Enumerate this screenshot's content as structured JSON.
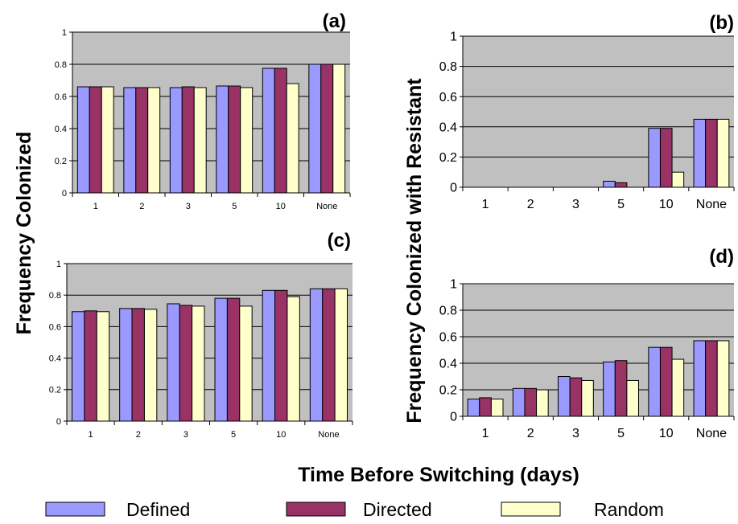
{
  "legend": [
    {
      "name": "Defined",
      "color": "#9999ff"
    },
    {
      "name": "Directed",
      "color": "#993366"
    },
    {
      "name": "Random",
      "color": "#ffffcc"
    }
  ],
  "labels": {
    "left_ylabel": "Frequency Colonized",
    "right_ylabel": "Frequency Colonized with Resistant",
    "xlabel": "Time Before Switching  (days)"
  },
  "colors": {
    "plot_bg": "#c0c0c0",
    "bar_stroke": "#000000"
  },
  "chart_data": [
    {
      "type": "bar",
      "panel": "(a)",
      "categories": [
        "1",
        "2",
        "3",
        "5",
        "10",
        "None"
      ],
      "ylim": [
        0,
        1
      ],
      "yticks": [
        "0",
        "0.2",
        "0.4",
        "0.6",
        "0.8",
        "1"
      ],
      "series": [
        {
          "name": "Defined",
          "values": [
            0.66,
            0.655,
            0.655,
            0.665,
            0.775,
            0.8
          ]
        },
        {
          "name": "Directed",
          "values": [
            0.66,
            0.655,
            0.66,
            0.665,
            0.775,
            0.8
          ]
        },
        {
          "name": "Random",
          "values": [
            0.66,
            0.655,
            0.655,
            0.655,
            0.68,
            0.8
          ]
        }
      ]
    },
    {
      "type": "bar",
      "panel": "(b)",
      "categories": [
        "1",
        "2",
        "3",
        "5",
        "10",
        "None"
      ],
      "ylim": [
        0,
        1
      ],
      "yticks": [
        "0",
        "0.2",
        "0.4",
        "0.6",
        "0.8",
        "1"
      ],
      "series": [
        {
          "name": "Defined",
          "values": [
            0,
            0,
            0,
            0.04,
            0.39,
            0.45
          ]
        },
        {
          "name": "Directed",
          "values": [
            0,
            0,
            0,
            0.03,
            0.39,
            0.45
          ]
        },
        {
          "name": "Random",
          "values": [
            0,
            0,
            0,
            0,
            0.1,
            0.45
          ]
        }
      ]
    },
    {
      "type": "bar",
      "panel": "(c)",
      "categories": [
        "1",
        "2",
        "3",
        "5",
        "10",
        "None"
      ],
      "ylim": [
        0,
        1
      ],
      "yticks": [
        "0",
        "0.2",
        "0.4",
        "0.6",
        "0.8",
        "1"
      ],
      "series": [
        {
          "name": "Defined",
          "values": [
            0.695,
            0.715,
            0.745,
            0.78,
            0.83,
            0.84
          ]
        },
        {
          "name": "Directed",
          "values": [
            0.7,
            0.715,
            0.735,
            0.78,
            0.83,
            0.84
          ]
        },
        {
          "name": "Random",
          "values": [
            0.695,
            0.71,
            0.73,
            0.73,
            0.79,
            0.84
          ]
        }
      ]
    },
    {
      "type": "bar",
      "panel": "(d)",
      "categories": [
        "1",
        "2",
        "3",
        "5",
        "10",
        "None"
      ],
      "ylim": [
        0,
        1
      ],
      "yticks": [
        "0",
        "0.2",
        "0.4",
        "0.6",
        "0.8",
        "1"
      ],
      "series": [
        {
          "name": "Defined",
          "values": [
            0.13,
            0.21,
            0.3,
            0.41,
            0.52,
            0.57
          ]
        },
        {
          "name": "Directed",
          "values": [
            0.14,
            0.21,
            0.29,
            0.42,
            0.52,
            0.57
          ]
        },
        {
          "name": "Random",
          "values": [
            0.13,
            0.2,
            0.27,
            0.27,
            0.43,
            0.57
          ]
        }
      ]
    }
  ]
}
